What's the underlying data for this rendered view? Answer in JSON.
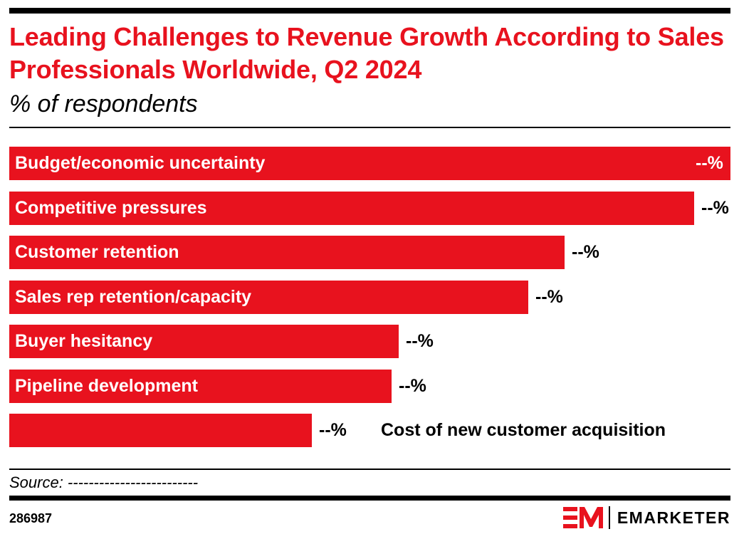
{
  "title": "Leading Challenges to Revenue Growth According to Sales Professionals Worldwide, Q2 2024",
  "subtitle": "% of respondents",
  "source": "Source: -------------------------",
  "chart_id": "286987",
  "brand": {
    "name": "EMARKETER",
    "logo": "em-logo-icon",
    "accent": "#e8121e"
  },
  "chart_data": {
    "type": "bar",
    "orientation": "horizontal",
    "title": "Leading Challenges to Revenue Growth According to Sales Professionals Worldwide, Q2 2024",
    "subtitle": "% of respondents",
    "xlabel": "",
    "ylabel": "",
    "xlim": [
      0,
      100
    ],
    "grid": false,
    "legend": "none",
    "bar_color": "#e8121e",
    "categories": [
      "Budget/economic uncertainty",
      "Competitive pressures",
      "Customer retention",
      "Sales rep retention/capacity",
      "Buyer hesitancy",
      "Pipeline development",
      "Cost of new customer acquisition"
    ],
    "values": [
      100,
      95,
      77,
      72,
      54,
      53,
      42
    ],
    "value_labels": [
      "--%",
      "--%",
      "--%",
      "--%",
      "--%",
      "--%",
      "--%"
    ]
  }
}
